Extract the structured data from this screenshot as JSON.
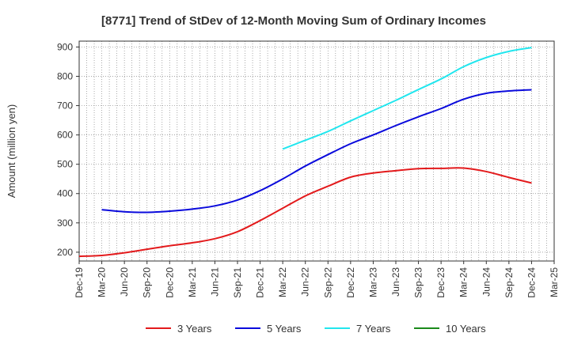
{
  "chart_data": {
    "type": "line",
    "title": "[8771]  Trend of StDev of 12-Month Moving Sum of Ordinary Incomes",
    "xlabel": "",
    "ylabel": "Amount (million yen)",
    "ylim": [
      170,
      920
    ],
    "yticks": [
      200,
      300,
      400,
      500,
      600,
      700,
      800,
      900
    ],
    "grid": true,
    "legend_position": "bottom",
    "x": [
      "Dec-19",
      "Mar-20",
      "Jun-20",
      "Sep-20",
      "Dec-20",
      "Mar-21",
      "Jun-21",
      "Sep-21",
      "Dec-21",
      "Mar-22",
      "Jun-22",
      "Sep-22",
      "Dec-22",
      "Mar-23",
      "Jun-23",
      "Sep-23",
      "Dec-23",
      "Mar-24",
      "Jun-24",
      "Sep-24",
      "Dec-24",
      "Mar-25"
    ],
    "series": [
      {
        "name": "3 Years",
        "color": "#e31a1c",
        "values": [
          186,
          189,
          198,
          210,
          222,
          232,
          246,
          270,
          308,
          350,
          392,
          425,
          456,
          470,
          478,
          485,
          486,
          487,
          475,
          455,
          436,
          null
        ]
      },
      {
        "name": "5 Years",
        "color": "#0a0adc",
        "values": [
          null,
          345,
          338,
          336,
          340,
          347,
          358,
          378,
          410,
          450,
          494,
          533,
          570,
          600,
          632,
          662,
          690,
          722,
          742,
          750,
          754,
          null
        ]
      },
      {
        "name": "7 Years",
        "color": "#22e6ee",
        "values": [
          null,
          null,
          null,
          null,
          null,
          null,
          null,
          null,
          null,
          552,
          582,
          612,
          648,
          683,
          718,
          755,
          791,
          833,
          864,
          885,
          898,
          null
        ]
      },
      {
        "name": "10 Years",
        "color": "#1a8a1a",
        "values": [
          null,
          null,
          null,
          null,
          null,
          null,
          null,
          null,
          null,
          null,
          null,
          null,
          null,
          null,
          null,
          null,
          null,
          null,
          null,
          null,
          null,
          null
        ]
      }
    ]
  }
}
